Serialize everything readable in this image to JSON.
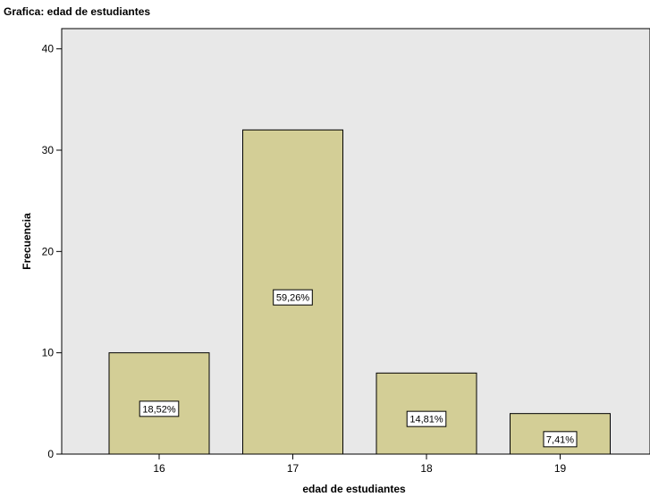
{
  "title": "Grafica: edad de estudiantes",
  "colors": {
    "plot_background": "#e8e8e8",
    "bar_fill": "#d3ce96",
    "bar_stroke": "#000000"
  },
  "chart_data": {
    "type": "bar",
    "title": "Grafica: edad de estudiantes",
    "xlabel": "edad de estudiantes",
    "ylabel": "Frecuencia",
    "categories": [
      "16",
      "17",
      "18",
      "19"
    ],
    "values": [
      10,
      32,
      8,
      4
    ],
    "data_labels": [
      "18,52%",
      "59,26%",
      "14,81%",
      "7,41%"
    ],
    "ylim": [
      0,
      42
    ],
    "yticks": [
      0,
      10,
      20,
      30,
      40
    ],
    "grid": false,
    "legend": "none"
  }
}
